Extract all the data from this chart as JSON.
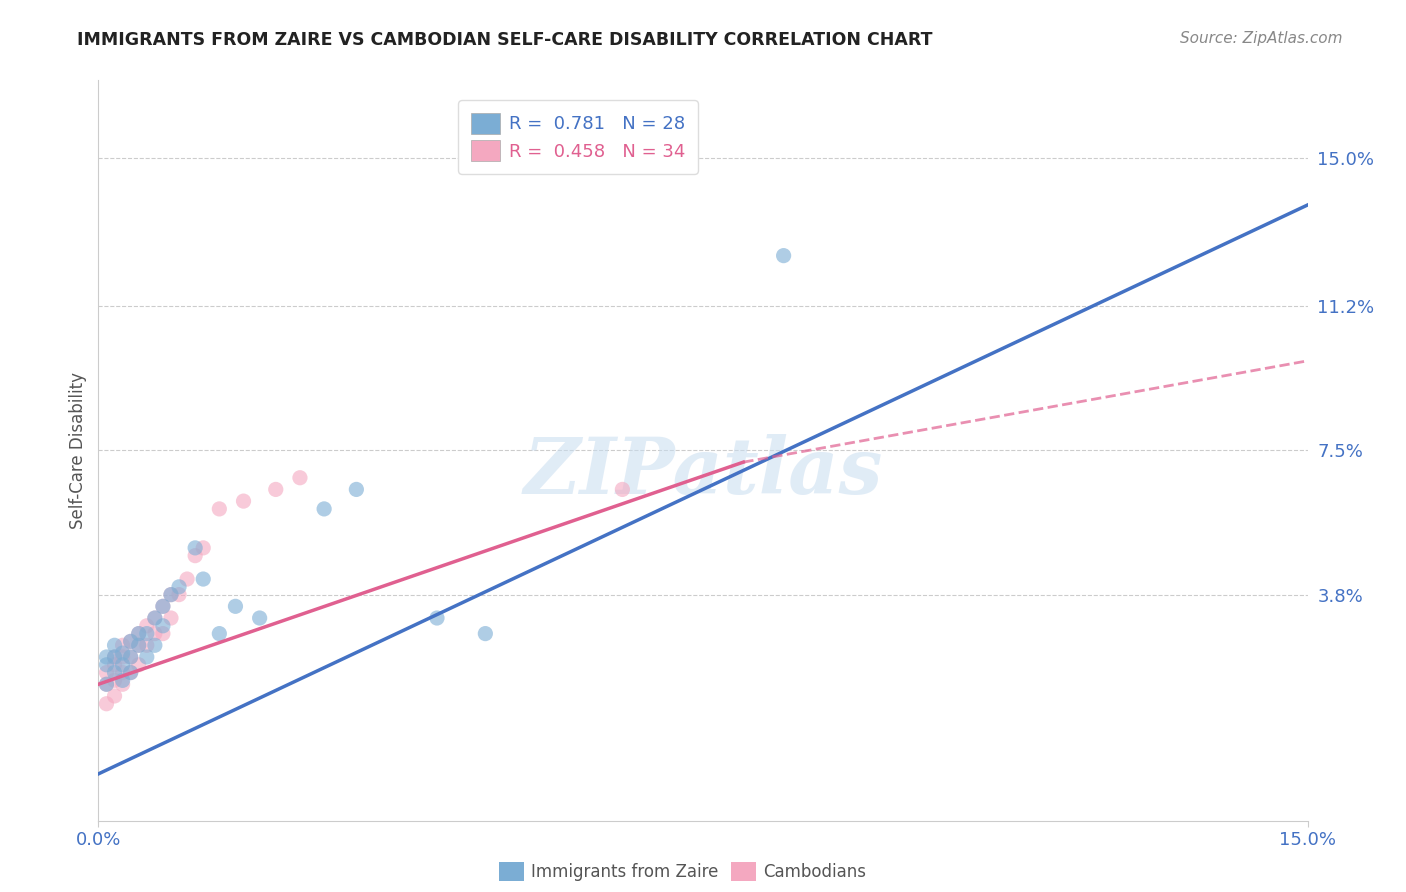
{
  "title": "IMMIGRANTS FROM ZAIRE VS CAMBODIAN SELF-CARE DISABILITY CORRELATION CHART",
  "source": "Source: ZipAtlas.com",
  "ylabel": "Self-Care Disability",
  "xlim": [
    0.0,
    0.15
  ],
  "ylim": [
    -0.02,
    0.17
  ],
  "ytick_labels": [
    "15.0%",
    "11.2%",
    "7.5%",
    "3.8%"
  ],
  "ytick_values": [
    0.15,
    0.112,
    0.075,
    0.038
  ],
  "background_color": "#ffffff",
  "blue_color": "#7badd4",
  "pink_color": "#f4a8c0",
  "blue_line_color": "#4472c4",
  "pink_line_color": "#e06090",
  "zaire_points_x": [
    0.001,
    0.001,
    0.001,
    0.002,
    0.002,
    0.002,
    0.003,
    0.003,
    0.003,
    0.004,
    0.004,
    0.004,
    0.005,
    0.005,
    0.006,
    0.006,
    0.007,
    0.007,
    0.008,
    0.008,
    0.009,
    0.01,
    0.012,
    0.013,
    0.015,
    0.017,
    0.02,
    0.028,
    0.032,
    0.042,
    0.048,
    0.085
  ],
  "zaire_points_y": [
    0.015,
    0.02,
    0.022,
    0.018,
    0.022,
    0.025,
    0.016,
    0.02,
    0.023,
    0.018,
    0.022,
    0.026,
    0.025,
    0.028,
    0.022,
    0.028,
    0.025,
    0.032,
    0.03,
    0.035,
    0.038,
    0.04,
    0.05,
    0.042,
    0.028,
    0.035,
    0.032,
    0.06,
    0.065,
    0.032,
    0.028,
    0.125
  ],
  "cambodian_points_x": [
    0.001,
    0.001,
    0.001,
    0.002,
    0.002,
    0.002,
    0.002,
    0.003,
    0.003,
    0.003,
    0.003,
    0.004,
    0.004,
    0.004,
    0.005,
    0.005,
    0.005,
    0.006,
    0.006,
    0.007,
    0.007,
    0.008,
    0.008,
    0.009,
    0.009,
    0.01,
    0.011,
    0.012,
    0.013,
    0.015,
    0.018,
    0.022,
    0.025,
    0.065
  ],
  "cambodian_points_y": [
    0.01,
    0.015,
    0.018,
    0.012,
    0.016,
    0.02,
    0.022,
    0.015,
    0.018,
    0.022,
    0.025,
    0.018,
    0.022,
    0.026,
    0.02,
    0.025,
    0.028,
    0.025,
    0.03,
    0.028,
    0.032,
    0.028,
    0.035,
    0.032,
    0.038,
    0.038,
    0.042,
    0.048,
    0.05,
    0.06,
    0.062,
    0.065,
    0.068,
    0.065
  ],
  "blue_line_x0": 0.0,
  "blue_line_y0": -0.008,
  "blue_line_x1": 0.15,
  "blue_line_y1": 0.138,
  "pink_line_solid_x0": 0.0,
  "pink_line_solid_y0": 0.015,
  "pink_line_solid_x1": 0.08,
  "pink_line_solid_y1": 0.072,
  "pink_line_dash_x0": 0.08,
  "pink_line_dash_y0": 0.072,
  "pink_line_dash_x1": 0.15,
  "pink_line_dash_y1": 0.098
}
